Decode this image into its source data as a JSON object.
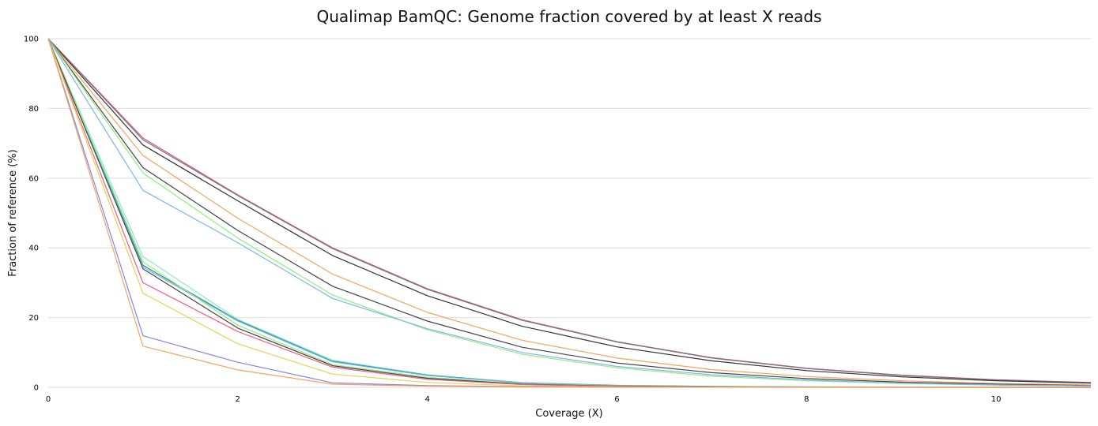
{
  "chart_data": {
    "type": "line",
    "title": "Qualimap BamQC: Genome fraction covered by at least X reads",
    "xlabel": "Coverage (X)",
    "ylabel": "Fraction of reference (%)",
    "xlim": [
      0,
      11
    ],
    "ylim": [
      0,
      100
    ],
    "xticks": [
      "0",
      "2",
      "4",
      "6",
      "8",
      "10"
    ],
    "yticks": [
      "0",
      "20",
      "40",
      "60",
      "80",
      "100"
    ],
    "grid": true,
    "legend": "none",
    "x": [
      0,
      1,
      2,
      3,
      4,
      5,
      6,
      7,
      8,
      9,
      10,
      11
    ],
    "series": [
      {
        "color": "#cc5599",
        "values": [
          100,
          71.5,
          55.2,
          40.0,
          28.3,
          19.4,
          13.1,
          8.5,
          5.5,
          3.5,
          2.2,
          1.4
        ]
      },
      {
        "color": "#777777",
        "values": [
          100,
          71.0,
          55.0,
          39.8,
          28.1,
          19.2,
          13.0,
          8.4,
          5.4,
          3.4,
          2.1,
          1.3
        ]
      },
      {
        "color": "#333333",
        "values": [
          100,
          69.5,
          53.5,
          37.8,
          26.3,
          17.5,
          11.6,
          7.6,
          4.8,
          3.0,
          1.9,
          1.2
        ]
      },
      {
        "color": "#f7a35c",
        "values": [
          100,
          66.5,
          48.5,
          32.5,
          21.5,
          13.5,
          8.4,
          5.1,
          3.1,
          1.9,
          1.1,
          0.7
        ]
      },
      {
        "color": "#434348",
        "values": [
          100,
          63.0,
          45.0,
          29.0,
          19.0,
          11.5,
          7.0,
          4.2,
          2.5,
          1.5,
          0.9,
          0.5
        ]
      },
      {
        "color": "#90ed7d",
        "values": [
          100,
          61.5,
          42.8,
          26.5,
          16.5,
          9.5,
          5.6,
          3.2,
          1.9,
          1.1,
          0.6,
          0.4
        ]
      },
      {
        "color": "#7cb5ec",
        "values": [
          100,
          56.5,
          41.5,
          25.5,
          16.8,
          10.0,
          6.0,
          3.6,
          2.1,
          1.2,
          0.7,
          0.4
        ]
      },
      {
        "color": "#8ce8d0",
        "values": [
          100,
          37.5,
          19.5,
          7.8,
          3.6,
          1.4,
          0.6,
          0.3,
          0.15,
          0.1,
          0.05,
          0.03
        ]
      },
      {
        "color": "#2b908f",
        "values": [
          100,
          35.0,
          19.2,
          7.5,
          3.5,
          1.3,
          0.55,
          0.25,
          0.12,
          0.08,
          0.05,
          0.03
        ]
      },
      {
        "color": "#7cb5ec",
        "values": [
          100,
          34.5,
          19.0,
          7.3,
          3.4,
          1.25,
          0.5,
          0.22,
          0.1,
          0.06,
          0.04,
          0.02
        ]
      },
      {
        "color": "#90ed7d",
        "values": [
          100,
          36.0,
          17.8,
          6.5,
          2.9,
          1.0,
          0.4,
          0.18,
          0.08,
          0.05,
          0.03,
          0.02
        ]
      },
      {
        "color": "#434348",
        "values": [
          100,
          34.0,
          17.0,
          6.2,
          2.6,
          0.9,
          0.35,
          0.15,
          0.07,
          0.04,
          0.02,
          0.01
        ]
      },
      {
        "color": "#f15c80",
        "values": [
          100,
          30.0,
          16.0,
          5.8,
          2.3,
          0.8,
          0.3,
          0.12,
          0.05,
          0.03,
          0.02,
          0.01
        ]
      },
      {
        "color": "#e4d354",
        "values": [
          100,
          27.0,
          12.5,
          3.8,
          1.4,
          0.4,
          0.15,
          0.06,
          0.03,
          0.02,
          0.01,
          0.01
        ]
      },
      {
        "color": "#8085e9",
        "values": [
          100,
          14.8,
          7.2,
          1.3,
          0.5,
          0.2,
          0.08,
          0.03,
          0.02,
          0.01,
          0.01,
          0.0
        ]
      },
      {
        "color": "#f7a35c",
        "values": [
          100,
          11.8,
          5.0,
          0.9,
          0.35,
          0.12,
          0.05,
          0.02,
          0.01,
          0.01,
          0.0,
          0.0
        ]
      }
    ]
  }
}
